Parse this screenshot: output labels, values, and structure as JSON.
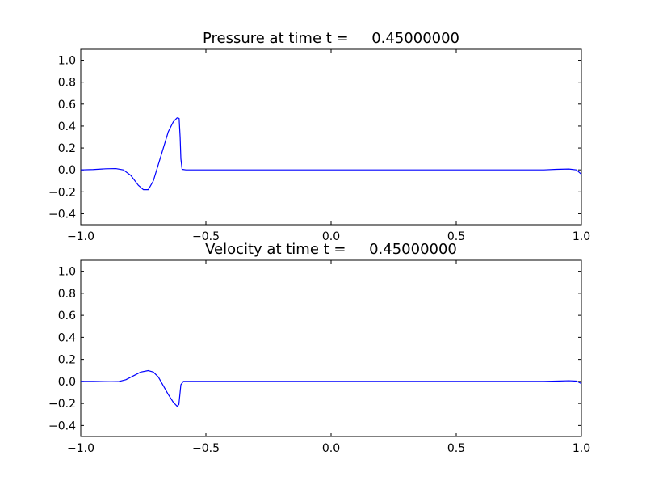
{
  "chart_data": [
    {
      "type": "line",
      "title": "Pressure at time t =     0.45000000",
      "xlim": [
        -1.0,
        1.0
      ],
      "ylim": [
        -0.5,
        1.1
      ],
      "xticks": [
        -1.0,
        -0.5,
        0.0,
        0.5,
        1.0
      ],
      "xtick_labels": [
        "−1.0",
        "−0.5",
        "0.0",
        "0.5",
        "1.0"
      ],
      "yticks": [
        -0.4,
        -0.2,
        0.0,
        0.2,
        0.4,
        0.6,
        0.8,
        1.0
      ],
      "ytick_labels": [
        "−0.4",
        "−0.2",
        "0.0",
        "0.2",
        "0.4",
        "0.6",
        "0.8",
        "1.0"
      ],
      "grid": false,
      "line_color": "#0000ff",
      "x": [
        -1.0,
        -0.95,
        -0.9,
        -0.86,
        -0.83,
        -0.8,
        -0.77,
        -0.75,
        -0.73,
        -0.71,
        -0.69,
        -0.67,
        -0.65,
        -0.63,
        -0.615,
        -0.607,
        -0.603,
        -0.6,
        -0.595,
        -0.58,
        -0.5,
        0.0,
        0.5,
        0.85,
        0.9,
        0.95,
        0.98,
        1.0
      ],
      "y": [
        0.0,
        0.003,
        0.01,
        0.012,
        0.0,
        -0.05,
        -0.14,
        -0.18,
        -0.18,
        -0.1,
        0.05,
        0.2,
        0.35,
        0.44,
        0.475,
        0.47,
        0.3,
        0.1,
        0.005,
        0.0,
        0.0,
        0.0,
        0.0,
        0.0,
        0.005,
        0.008,
        0.0,
        -0.04
      ]
    },
    {
      "type": "line",
      "title": "Velocity at time t =     0.45000000",
      "xlim": [
        -1.0,
        1.0
      ],
      "ylim": [
        -0.5,
        1.1
      ],
      "xticks": [
        -1.0,
        -0.5,
        0.0,
        0.5,
        1.0
      ],
      "xtick_labels": [
        "−1.0",
        "−0.5",
        "0.0",
        "0.5",
        "1.0"
      ],
      "yticks": [
        -0.4,
        -0.2,
        0.0,
        0.2,
        0.4,
        0.6,
        0.8,
        1.0
      ],
      "ytick_labels": [
        "−0.4",
        "−0.2",
        "0.0",
        "0.2",
        "0.4",
        "0.6",
        "0.8",
        "1.0"
      ],
      "grid": false,
      "line_color": "#0000ff",
      "x": [
        -1.0,
        -0.95,
        -0.88,
        -0.85,
        -0.82,
        -0.79,
        -0.76,
        -0.73,
        -0.71,
        -0.69,
        -0.67,
        -0.65,
        -0.63,
        -0.615,
        -0.608,
        -0.604,
        -0.6,
        -0.59,
        -0.5,
        0.0,
        0.5,
        0.85,
        0.9,
        0.95,
        0.98,
        1.0
      ],
      "y": [
        0.0,
        0.0,
        -0.003,
        -0.002,
        0.015,
        0.05,
        0.085,
        0.098,
        0.085,
        0.04,
        -0.04,
        -0.12,
        -0.19,
        -0.225,
        -0.21,
        -0.12,
        -0.03,
        0.0,
        0.0,
        0.0,
        0.0,
        0.0,
        0.003,
        0.006,
        0.003,
        -0.02
      ]
    }
  ]
}
